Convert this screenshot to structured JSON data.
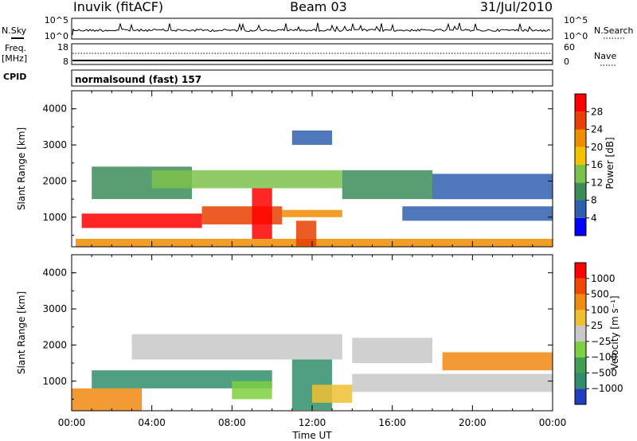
{
  "header": {
    "station": "Inuvik (fitACF)",
    "beam": "Beam 03",
    "date": "31/Jul/2010"
  },
  "noise_panel": {
    "left_label": "N.Sky",
    "left_ticks": [
      "10^5",
      "10^0"
    ],
    "right_ticks": [
      "10^5",
      "10^0"
    ],
    "right_label": "N.Search"
  },
  "freq_panel": {
    "left_label_line1": "Freq.",
    "left_label_line2": "[MHz]",
    "left_ticks": [
      "18",
      "8"
    ],
    "right_ticks": [
      "60",
      "0"
    ],
    "right_label": "Nave"
  },
  "cpid_panel": {
    "label": "CPID",
    "mode": "normalsound (fast) 157"
  },
  "chart_data": [
    {
      "type": "heatmap",
      "name": "power",
      "ylabel": "Slant Range [km]",
      "ylim": [
        180,
        4500
      ],
      "yticks": [
        "1000",
        "2000",
        "3000",
        "4000"
      ],
      "xlim": [
        "00:00",
        "24:00"
      ],
      "colorbar": {
        "label": "Power [dB]",
        "ticks": [
          "4",
          "8",
          "12",
          "16",
          "20",
          "24",
          "28"
        ],
        "colors": [
          "#0000ff",
          "#2f5fb0",
          "#3c8c5a",
          "#7cc24a",
          "#f2c200",
          "#f08c00",
          "#e84000",
          "#ff0000"
        ]
      },
      "bands": [
        {
          "t0": 0.2,
          "t1": 24,
          "r0": 180,
          "r1": 400,
          "color": "#f08c00"
        },
        {
          "t0": 0.5,
          "t1": 6.5,
          "r0": 700,
          "r1": 1100,
          "color": "#ff0000"
        },
        {
          "t0": 6.5,
          "t1": 10.5,
          "r0": 800,
          "r1": 1300,
          "color": "#e84000"
        },
        {
          "t0": 10.5,
          "t1": 13.5,
          "r0": 1000,
          "r1": 1200,
          "color": "#f08c00"
        },
        {
          "t0": 16.5,
          "t1": 24,
          "r0": 900,
          "r1": 1300,
          "color": "#2f5fb0"
        },
        {
          "t0": 1,
          "t1": 6,
          "r0": 1500,
          "r1": 2400,
          "color": "#3c8c5a"
        },
        {
          "t0": 4,
          "t1": 13.5,
          "r0": 1800,
          "r1": 2300,
          "color": "#7cc24a"
        },
        {
          "t0": 13.5,
          "t1": 18,
          "r0": 1500,
          "r1": 2300,
          "color": "#3c8c5a"
        },
        {
          "t0": 18,
          "t1": 24,
          "r0": 1500,
          "r1": 2200,
          "color": "#2f5fb0"
        },
        {
          "t0": 9,
          "t1": 10,
          "r0": 400,
          "r1": 1800,
          "color": "#ff0000"
        },
        {
          "t0": 11.2,
          "t1": 12.2,
          "r0": 200,
          "r1": 900,
          "color": "#e84000"
        },
        {
          "t0": 11,
          "t1": 13,
          "r0": 3000,
          "r1": 3400,
          "color": "#2f5fb0"
        }
      ]
    },
    {
      "type": "heatmap",
      "name": "velocity",
      "ylabel": "Slant Range [km]",
      "ylim": [
        180,
        4500
      ],
      "yticks": [
        "1000",
        "2000",
        "3000",
        "4000"
      ],
      "xlim": [
        "00:00",
        "24:00"
      ],
      "xticks": [
        "00:00",
        "04:00",
        "08:00",
        "12:00",
        "16:00",
        "20:00",
        "00:00"
      ],
      "xlabel": "Time UT",
      "colorbar": {
        "label": "Velocity [m s⁻¹]",
        "ticks": [
          "1000",
          "500",
          "100",
          "25",
          "−25",
          "−100",
          "−500",
          "−1000"
        ],
        "colors": [
          "#1f3fbf",
          "#2f8f6a",
          "#3fa050",
          "#7ed040",
          "#c8c8c8",
          "#f0c030",
          "#f08a10",
          "#f04a00",
          "#ff0000"
        ]
      },
      "bands": [
        {
          "t0": 0,
          "t1": 3.5,
          "r0": 180,
          "r1": 800,
          "color": "#f08a10"
        },
        {
          "t0": 1,
          "t1": 10,
          "r0": 800,
          "r1": 1300,
          "color": "#2f8f6a"
        },
        {
          "t0": 3,
          "t1": 13.5,
          "r0": 1600,
          "r1": 2300,
          "color": "#c8c8c8"
        },
        {
          "t0": 11,
          "t1": 13,
          "r0": 200,
          "r1": 1600,
          "color": "#2f8f6a"
        },
        {
          "t0": 14,
          "t1": 18,
          "r0": 1500,
          "r1": 2200,
          "color": "#c8c8c8"
        },
        {
          "t0": 14,
          "t1": 24,
          "r0": 700,
          "r1": 1200,
          "color": "#c8c8c8"
        },
        {
          "t0": 18.5,
          "t1": 24,
          "r0": 1300,
          "r1": 1800,
          "color": "#f08a10"
        },
        {
          "t0": 12,
          "t1": 14,
          "r0": 400,
          "r1": 900,
          "color": "#f0c030"
        },
        {
          "t0": 8,
          "t1": 10,
          "r0": 500,
          "r1": 1000,
          "color": "#7ed040"
        }
      ]
    }
  ]
}
